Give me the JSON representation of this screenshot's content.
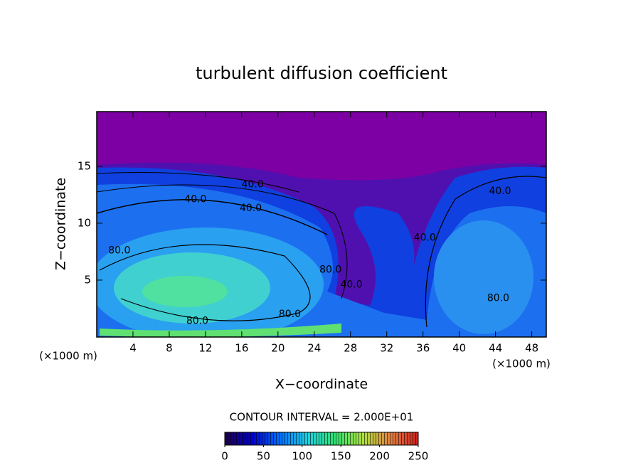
{
  "chart_data": {
    "type": "contour",
    "title": "turbulent diffusion coefficient",
    "xlabel": "X−coordinate",
    "ylabel": "Z−coordinate",
    "xunit": "(×1000 m)",
    "yunit": "(×1000 m)",
    "xlim": [
      0,
      49.6
    ],
    "ylim": [
      0,
      19.8
    ],
    "xticks": [
      4,
      8,
      12,
      16,
      20,
      24,
      28,
      32,
      36,
      40,
      44,
      48
    ],
    "yticks": [
      5,
      10,
      15
    ],
    "contour_interval_text": "CONTOUR INTERVAL = 2.000E+01",
    "contour_labels": [
      {
        "text": "40.0",
        "x": 17.2,
        "y": 13.4
      },
      {
        "text": "40.0",
        "x": 10.9,
        "y": 12.1
      },
      {
        "text": "40.0",
        "x": 17.0,
        "y": 11.3
      },
      {
        "text": "80.0",
        "x": 2.5,
        "y": 7.6
      },
      {
        "text": "80.0",
        "x": 11.1,
        "y": 1.4
      },
      {
        "text": "80.0",
        "x": 21.3,
        "y": 2.0
      },
      {
        "text": "40.0",
        "x": 28.1,
        "y": 4.6
      },
      {
        "text": "80.0",
        "x": 25.8,
        "y": 5.9
      },
      {
        "text": "40.0",
        "x": 36.2,
        "y": 8.7
      },
      {
        "text": "40.0",
        "x": 44.5,
        "y": 12.8
      },
      {
        "text": "80.0",
        "x": 44.3,
        "y": 3.4
      }
    ],
    "colorbar": {
      "lim": [
        0,
        250
      ],
      "ticks": [
        0,
        50,
        100,
        150,
        200,
        250
      ],
      "colormap": [
        "#20004a",
        "#0000c8",
        "#0070ff",
        "#20d0e0",
        "#30e070",
        "#b0e040",
        "#e08040",
        "#d02020"
      ]
    }
  }
}
